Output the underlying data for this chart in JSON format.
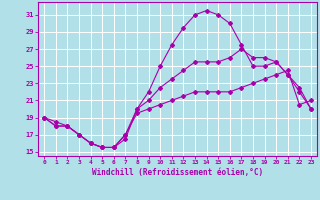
{
  "xlabel": "Windchill (Refroidissement éolien,°C)",
  "background_color": "#b2e0e8",
  "grid_color": "#ffffff",
  "line_color": "#aa00aa",
  "xlim": [
    -0.5,
    23.5
  ],
  "ylim": [
    14.5,
    32.5
  ],
  "yticks": [
    15,
    17,
    19,
    21,
    23,
    25,
    27,
    29,
    31
  ],
  "xticks": [
    0,
    1,
    2,
    3,
    4,
    5,
    6,
    7,
    8,
    9,
    10,
    11,
    12,
    13,
    14,
    15,
    16,
    17,
    18,
    19,
    20,
    21,
    22,
    23
  ],
  "line1_x": [
    0,
    1,
    2,
    3,
    4,
    5,
    6,
    7,
    8,
    9,
    10,
    11,
    12,
    13,
    14,
    15,
    16,
    17,
    18,
    19,
    20,
    21,
    22,
    23
  ],
  "line1_y": [
    19,
    18,
    18,
    17,
    16,
    15.5,
    15.5,
    17,
    19.5,
    20,
    20.5,
    21,
    21.5,
    22,
    22,
    22,
    22,
    22.5,
    23,
    23.5,
    24,
    24.5,
    20.5,
    21
  ],
  "line2_x": [
    0,
    1,
    2,
    3,
    4,
    5,
    6,
    7,
    8,
    9,
    10,
    11,
    12,
    13,
    14,
    15,
    16,
    17,
    18,
    19,
    20,
    21,
    22,
    23
  ],
  "line2_y": [
    19,
    18,
    18,
    17,
    16,
    15.5,
    15.5,
    16.5,
    20,
    22,
    25,
    27.5,
    29.5,
    31,
    31.5,
    31,
    30,
    27.5,
    25,
    25,
    25.5,
    24,
    22.5,
    20
  ],
  "line3_x": [
    0,
    1,
    2,
    3,
    4,
    5,
    6,
    7,
    8,
    9,
    10,
    11,
    12,
    13,
    14,
    15,
    16,
    17,
    18,
    19,
    20,
    21,
    22,
    23
  ],
  "line3_y": [
    19,
    18.5,
    18,
    17,
    16,
    15.5,
    15.5,
    17,
    20,
    21,
    22.5,
    23.5,
    24.5,
    25.5,
    25.5,
    25.5,
    26,
    27,
    26,
    26,
    25.5,
    24,
    22,
    20
  ],
  "xlabel_fontsize": 5.5,
  "tick_fontsize": 5.0,
  "marker_size": 2.0,
  "linewidth": 0.8
}
